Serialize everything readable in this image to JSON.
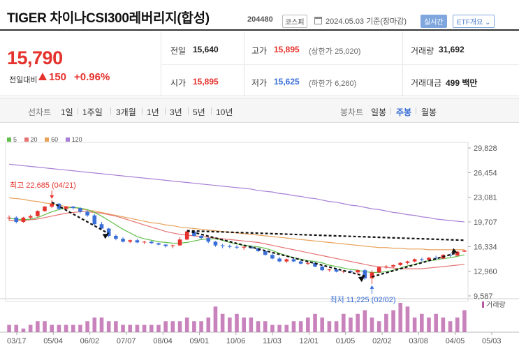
{
  "header": {
    "title": "TIGER 차이나CSI300레버리지(합성)",
    "code": "204480",
    "market_badge": "코스피",
    "date": "2024.05.03 기준(장마감)",
    "realtime_button": "실시간",
    "etf_button": "ETF개요 ⌄"
  },
  "summary": {
    "price": "15,790",
    "change_label": "전일대비",
    "change_value": "150",
    "change_pct": "+0.96%",
    "prev_close_label": "전일",
    "prev_close": "15,640",
    "high_label": "고가",
    "high": "15,895",
    "upper_limit": "(상한가 25,020)",
    "volume_label": "거래량",
    "volume": "31,692",
    "open_label": "시가",
    "open": "15,895",
    "low_label": "저가",
    "low": "15,625",
    "lower_limit": "(하한가 6,260)",
    "amount_label": "거래대금",
    "amount": "499 백만"
  },
  "periods": {
    "line_label": "선차트",
    "items": [
      "1일",
      "1주일",
      "3개월",
      "1년",
      "3년",
      "5년",
      "10년"
    ],
    "candle_label": "봉차트",
    "candle_items": [
      "일봉",
      "주봉",
      "월봉"
    ],
    "active_candle": 1
  },
  "colors": {
    "up": "#e5322d",
    "down": "#3a6fd8",
    "ma5": "#5fbf4a",
    "ma20": "#e57373",
    "ma60": "#e8a25a",
    "ma120": "#a77fd6",
    "volume": "#b75aa6"
  },
  "chart_data": {
    "type": "candlestick",
    "legend": [
      {
        "name": "5",
        "color": "#5fbf4a"
      },
      {
        "name": "20",
        "color": "#e57373"
      },
      {
        "name": "60",
        "color": "#e8a25a"
      },
      {
        "name": "120",
        "color": "#a77fd6"
      }
    ],
    "y_ticks": [
      29828,
      26454,
      23081,
      19707,
      16334,
      12960,
      9587
    ],
    "ylim": [
      9587,
      29828
    ],
    "x_ticks": [
      "03/17",
      "05/04",
      "06/02",
      "07/07",
      "08/04",
      "09/01",
      "10/06",
      "11/03",
      "12/01",
      "01/05",
      "02/02",
      "03/08",
      "04/05",
      "05/03"
    ],
    "high_annotation": "최고 22,685 (04/21)",
    "low_annotation": "최저 11,225 (02/02)",
    "volume_label": "거래량",
    "candles": [
      [
        20200,
        20600,
        19900,
        20300
      ],
      [
        20300,
        20500,
        19500,
        19700
      ],
      [
        19700,
        20400,
        19600,
        20300
      ],
      [
        20300,
        20700,
        20100,
        20500
      ],
      [
        20500,
        21300,
        20400,
        21200
      ],
      [
        21200,
        21900,
        21100,
        21800
      ],
      [
        21800,
        22685,
        21600,
        22200
      ],
      [
        22200,
        22300,
        21300,
        21500
      ],
      [
        21500,
        21900,
        21200,
        21800
      ],
      [
        21800,
        21900,
        21400,
        21600
      ],
      [
        21600,
        21700,
        20900,
        21100
      ],
      [
        21100,
        21300,
        20400,
        20600
      ],
      [
        20600,
        20800,
        19200,
        19400
      ],
      [
        19400,
        19700,
        18700,
        18800
      ],
      [
        18800,
        18900,
        17600,
        17800
      ],
      [
        17800,
        18000,
        17200,
        17400
      ],
      [
        17400,
        17600,
        16900,
        17000
      ],
      [
        17000,
        17300,
        16800,
        17200
      ],
      [
        17200,
        17400,
        16800,
        16900
      ],
      [
        16900,
        17100,
        16700,
        17000
      ],
      [
        17000,
        17100,
        16700,
        16800
      ],
      [
        16800,
        16900,
        16500,
        16600
      ],
      [
        16600,
        16700,
        16200,
        16400
      ],
      [
        16400,
        16600,
        16100,
        16500
      ],
      [
        16500,
        17600,
        16400,
        17300
      ],
      [
        17300,
        18500,
        17200,
        18400
      ],
      [
        18400,
        18500,
        17700,
        17800
      ],
      [
        17800,
        17900,
        17300,
        17500
      ],
      [
        17500,
        17600,
        16800,
        17000
      ],
      [
        17000,
        17100,
        16300,
        16500
      ],
      [
        16500,
        16700,
        16100,
        16400
      ],
      [
        16400,
        16600,
        16100,
        16300
      ],
      [
        16300,
        16500,
        16000,
        16200
      ],
      [
        16200,
        16400,
        15900,
        16300
      ],
      [
        16300,
        16500,
        16000,
        16100
      ],
      [
        16100,
        16200,
        15600,
        15700
      ],
      [
        15700,
        15800,
        15100,
        15200
      ],
      [
        15200,
        15400,
        14600,
        14700
      ],
      [
        14700,
        14900,
        14200,
        14300
      ],
      [
        14300,
        14700,
        14100,
        14600
      ],
      [
        14600,
        14800,
        14200,
        14300
      ],
      [
        14300,
        14400,
        13900,
        14000
      ],
      [
        14000,
        14200,
        13800,
        14100
      ],
      [
        14100,
        14200,
        13500,
        13600
      ],
      [
        13600,
        13700,
        13000,
        13100
      ],
      [
        13100,
        13300,
        12900,
        13200
      ],
      [
        13200,
        13400,
        12800,
        12900
      ],
      [
        12900,
        13100,
        12700,
        13000
      ],
      [
        13000,
        13100,
        12700,
        12800
      ],
      [
        12800,
        13200,
        12600,
        13100
      ],
      [
        13100,
        13300,
        11800,
        12000
      ],
      [
        12000,
        13100,
        11225,
        12800
      ],
      [
        12800,
        13600,
        12700,
        13500
      ],
      [
        13500,
        13800,
        13300,
        13600
      ],
      [
        13600,
        13900,
        13400,
        13800
      ],
      [
        13800,
        14200,
        13700,
        14100
      ],
      [
        14100,
        14400,
        13900,
        14300
      ],
      [
        14300,
        14700,
        14200,
        14600
      ],
      [
        14600,
        14800,
        14300,
        14500
      ],
      [
        14500,
        14900,
        14400,
        14800
      ],
      [
        14800,
        15100,
        14600,
        14700
      ],
      [
        14700,
        15300,
        14600,
        15200
      ],
      [
        15200,
        15400,
        14900,
        15100
      ],
      [
        15100,
        15700,
        15000,
        15640
      ],
      [
        15640,
        15895,
        15625,
        15790
      ]
    ],
    "ma5": [
      20200,
      20100,
      20000,
      20100,
      20300,
      20700,
      21100,
      21400,
      21600,
      21700,
      21600,
      21400,
      21000,
      20500,
      19900,
      19300,
      18700,
      18200,
      17700,
      17400,
      17200,
      17000,
      16900,
      16800,
      16800,
      16900,
      17100,
      17300,
      17400,
      17400,
      17200,
      16900,
      16700,
      16500,
      16400,
      16300,
      16100,
      15800,
      15400,
      15100,
      14800,
      14600,
      14400,
      14300,
      14100,
      13800,
      13600,
      13400,
      13200,
      13100,
      12900,
      12800,
      12800,
      12900,
      13100,
      13400,
      13700,
      13900,
      14200,
      14400,
      14500,
      14700,
      14800,
      15000,
      15200
    ],
    "ma20": [
      19900,
      19900,
      19900,
      20000,
      20100,
      20300,
      20500,
      20700,
      20900,
      21000,
      21100,
      21100,
      21000,
      20900,
      20700,
      20500,
      20200,
      19900,
      19600,
      19300,
      19000,
      18700,
      18400,
      18200,
      18000,
      17900,
      17800,
      17700,
      17600,
      17500,
      17400,
      17300,
      17200,
      17100,
      17000,
      16900,
      16700,
      16500,
      16300,
      16100,
      15900,
      15700,
      15500,
      15300,
      15100,
      14900,
      14700,
      14500,
      14300,
      14100,
      13900,
      13700,
      13600,
      13500,
      13400,
      13300,
      13300,
      13300,
      13300,
      13400,
      13500,
      13600,
      13700,
      13800,
      13900
    ],
    "ma60": [
      23000,
      22900,
      22800,
      22600,
      22500,
      22300,
      22200,
      22000,
      21800,
      21700,
      21500,
      21300,
      21200,
      21000,
      20800,
      20600,
      20400,
      20200,
      20000,
      19800,
      19600,
      19500,
      19300,
      19200,
      19000,
      18900,
      18800,
      18700,
      18600,
      18500,
      18400,
      18300,
      18200,
      18100,
      18000,
      17900,
      17800,
      17700,
      17600,
      17500,
      17400,
      17300,
      17200,
      17100,
      17000,
      16900,
      16800,
      16700,
      16600,
      16500,
      16400,
      16300,
      16200,
      16200,
      16100,
      16100,
      16000,
      16000,
      16000,
      15900,
      15900,
      15900,
      15900,
      15900,
      15900
    ],
    "ma120": [
      27600,
      27500,
      27400,
      27300,
      27200,
      27100,
      27000,
      26900,
      26800,
      26700,
      26600,
      26500,
      26400,
      26300,
      26200,
      26100,
      26000,
      25900,
      25800,
      25700,
      25600,
      25500,
      25400,
      25300,
      25200,
      25100,
      25000,
      24900,
      24800,
      24700,
      24600,
      24500,
      24400,
      24300,
      24200,
      24000,
      23900,
      23800,
      23600,
      23500,
      23300,
      23200,
      23000,
      22900,
      22700,
      22500,
      22400,
      22200,
      22000,
      21900,
      21700,
      21500,
      21400,
      21200,
      21000,
      20900,
      20700,
      20600,
      20400,
      20300,
      20100,
      20000,
      19900,
      19800,
      19700
    ],
    "volumes": [
      2,
      2,
      1,
      2,
      3,
      3,
      2,
      2,
      2,
      2,
      2,
      3,
      4,
      4,
      3,
      3,
      2,
      2,
      2,
      2,
      2,
      2,
      3,
      3,
      3,
      4,
      3,
      3,
      4,
      7,
      5,
      4,
      5,
      4,
      4,
      3,
      3,
      2,
      2,
      2,
      3,
      3,
      4,
      5,
      4,
      3,
      3,
      5,
      4,
      5,
      6,
      4,
      3,
      5,
      6,
      8,
      7,
      4,
      5,
      4,
      5,
      4,
      3,
      4,
      6
    ],
    "volumes_max": 8
  }
}
